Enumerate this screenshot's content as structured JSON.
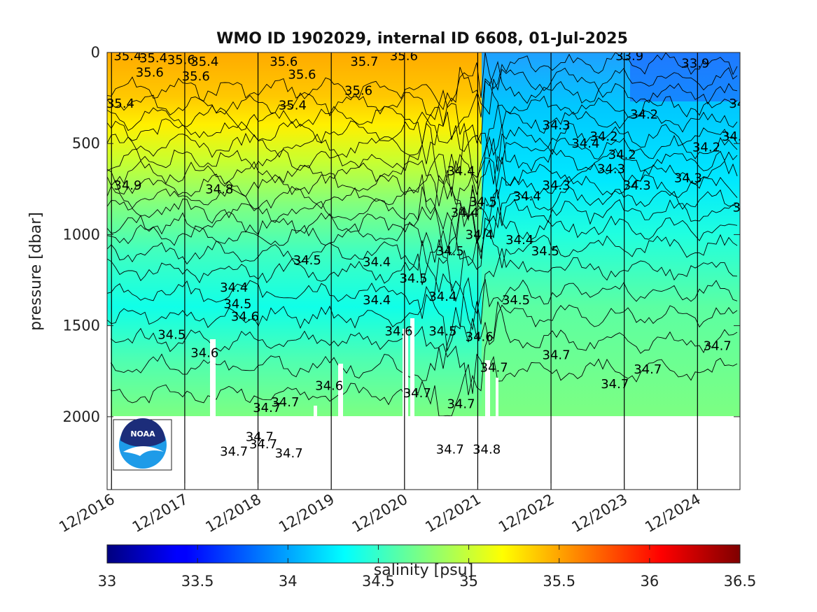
{
  "chart_data": {
    "type": "heatmap",
    "title": "WMO ID 1902029, internal ID 6608, 01-Jul-2025",
    "ylabel": "pressure [dbar]",
    "colorbar_label": "salinity [psu]",
    "x_tick_labels": [
      "12/2016",
      "12/2017",
      "12/2018",
      "12/2019",
      "12/2020",
      "12/2021",
      "12/2022",
      "12/2023",
      "12/2024"
    ],
    "x_tick_years": [
      2016.92,
      2017.92,
      2018.92,
      2019.92,
      2020.92,
      2021.92,
      2022.92,
      2023.92,
      2024.92
    ],
    "xlim": [
      2016.86,
      2025.5
    ],
    "y_ticks": [
      0,
      500,
      1000,
      1500,
      2000
    ],
    "y_tick_labels": [
      "0",
      "500",
      "1000",
      "1500",
      "2000"
    ],
    "ylim": [
      0,
      2400
    ],
    "y_reversed": true,
    "colorbar_ticks": [
      33,
      33.5,
      34,
      34.5,
      35,
      35.5,
      36,
      36.5
    ],
    "colorbar_tick_labels": [
      "33",
      "33.5",
      "34",
      "34.5",
      "35",
      "35.5",
      "36",
      "36.5"
    ],
    "clim": [
      33,
      36.5
    ],
    "colormap": "jet",
    "contour_labels": [
      {
        "x": 2016.95,
        "p": 20,
        "text": "35.4"
      },
      {
        "x": 2017.3,
        "p": 30,
        "text": "35.4"
      },
      {
        "x": 2017.25,
        "p": 110,
        "text": "35.6"
      },
      {
        "x": 2017.68,
        "p": 40,
        "text": "35.6"
      },
      {
        "x": 2018.0,
        "p": 50,
        "text": "35.4"
      },
      {
        "x": 2017.88,
        "p": 130,
        "text": "35.6"
      },
      {
        "x": 2019.08,
        "p": 50,
        "text": "35.6"
      },
      {
        "x": 2019.33,
        "p": 120,
        "text": "35.6"
      },
      {
        "x": 2020.18,
        "p": 50,
        "text": "35.7"
      },
      {
        "x": 2020.72,
        "p": 20,
        "text": "35.6"
      },
      {
        "x": 2020.1,
        "p": 210,
        "text": "35.6"
      },
      {
        "x": 2016.85,
        "p": 280,
        "text": "35.4"
      },
      {
        "x": 2019.2,
        "p": 290,
        "text": "35.4"
      },
      {
        "x": 2023.8,
        "p": 20,
        "text": "33.9"
      },
      {
        "x": 2024.7,
        "p": 60,
        "text": "33.9"
      },
      {
        "x": 2025.35,
        "p": 280,
        "text": "34.3"
      },
      {
        "x": 2022.8,
        "p": 400,
        "text": "34.3"
      },
      {
        "x": 2023.45,
        "p": 460,
        "text": "34.2"
      },
      {
        "x": 2024.0,
        "p": 340,
        "text": "34.2"
      },
      {
        "x": 2025.25,
        "p": 460,
        "text": "34.2"
      },
      {
        "x": 2024.85,
        "p": 520,
        "text": "34.2"
      },
      {
        "x": 2023.2,
        "p": 500,
        "text": "34.4"
      },
      {
        "x": 2023.7,
        "p": 560,
        "text": "34.2"
      },
      {
        "x": 2023.55,
        "p": 640,
        "text": "34.3"
      },
      {
        "x": 2024.6,
        "p": 690,
        "text": "34.3"
      },
      {
        "x": 2023.9,
        "p": 730,
        "text": "34.3"
      },
      {
        "x": 2022.4,
        "p": 790,
        "text": "34.4"
      },
      {
        "x": 2022.8,
        "p": 730,
        "text": "34.3"
      },
      {
        "x": 2025.4,
        "p": 850,
        "text": "34.4"
      },
      {
        "x": 2016.95,
        "p": 730,
        "text": "34.9"
      },
      {
        "x": 2018.2,
        "p": 750,
        "text": "34.8"
      },
      {
        "x": 2021.5,
        "p": 650,
        "text": "34.4"
      },
      {
        "x": 2021.8,
        "p": 820,
        "text": "34.5"
      },
      {
        "x": 2021.55,
        "p": 880,
        "text": "34.4"
      },
      {
        "x": 2021.75,
        "p": 1000,
        "text": "34.4"
      },
      {
        "x": 2021.35,
        "p": 1090,
        "text": "34.5"
      },
      {
        "x": 2019.4,
        "p": 1140,
        "text": "34.5"
      },
      {
        "x": 2020.35,
        "p": 1150,
        "text": "34.4"
      },
      {
        "x": 2020.85,
        "p": 1240,
        "text": "34.5"
      },
      {
        "x": 2020.35,
        "p": 1360,
        "text": "34.4"
      },
      {
        "x": 2021.25,
        "p": 1340,
        "text": "34.4"
      },
      {
        "x": 2022.25,
        "p": 1360,
        "text": "34.5"
      },
      {
        "x": 2022.3,
        "p": 1030,
        "text": "34.4"
      },
      {
        "x": 2022.65,
        "p": 1090,
        "text": "34.5"
      },
      {
        "x": 2018.4,
        "p": 1290,
        "text": "34.4"
      },
      {
        "x": 2018.45,
        "p": 1380,
        "text": "34.5"
      },
      {
        "x": 2018.55,
        "p": 1450,
        "text": "34.6"
      },
      {
        "x": 2017.55,
        "p": 1550,
        "text": "34.5"
      },
      {
        "x": 2018.0,
        "p": 1650,
        "text": "34.6"
      },
      {
        "x": 2020.65,
        "p": 1530,
        "text": "34.6"
      },
      {
        "x": 2021.25,
        "p": 1530,
        "text": "34.5"
      },
      {
        "x": 2021.75,
        "p": 1560,
        "text": "34.6"
      },
      {
        "x": 2022.8,
        "p": 1660,
        "text": "34.7"
      },
      {
        "x": 2025.0,
        "p": 1610,
        "text": "34.7"
      },
      {
        "x": 2024.05,
        "p": 1740,
        "text": "34.7"
      },
      {
        "x": 2023.6,
        "p": 1820,
        "text": "34.7"
      },
      {
        "x": 2021.95,
        "p": 1730,
        "text": "34.7"
      },
      {
        "x": 2020.9,
        "p": 1870,
        "text": "34.7"
      },
      {
        "x": 2021.5,
        "p": 1930,
        "text": "34.7"
      },
      {
        "x": 2019.1,
        "p": 1920,
        "text": "34.7"
      },
      {
        "x": 2019.7,
        "p": 1830,
        "text": "34.6"
      },
      {
        "x": 2018.85,
        "p": 1950,
        "text": "34.7"
      },
      {
        "x": 2016.95,
        "p": 2040,
        "text": "34.6"
      },
      {
        "x": 2018.75,
        "p": 2110,
        "text": "34.7"
      },
      {
        "x": 2018.8,
        "p": 2150,
        "text": "34.7"
      },
      {
        "x": 2018.4,
        "p": 2190,
        "text": "34.7"
      },
      {
        "x": 2019.15,
        "p": 2200,
        "text": "34.7"
      },
      {
        "x": 2021.35,
        "p": 2180,
        "text": "34.7"
      },
      {
        "x": 2021.85,
        "p": 2180,
        "text": "34.8"
      }
    ]
  },
  "logo": {
    "text": "NOAA",
    "colors": {
      "dark": "#1c2d7a",
      "light": "#1e9be8",
      "white": "#ffffff"
    }
  }
}
